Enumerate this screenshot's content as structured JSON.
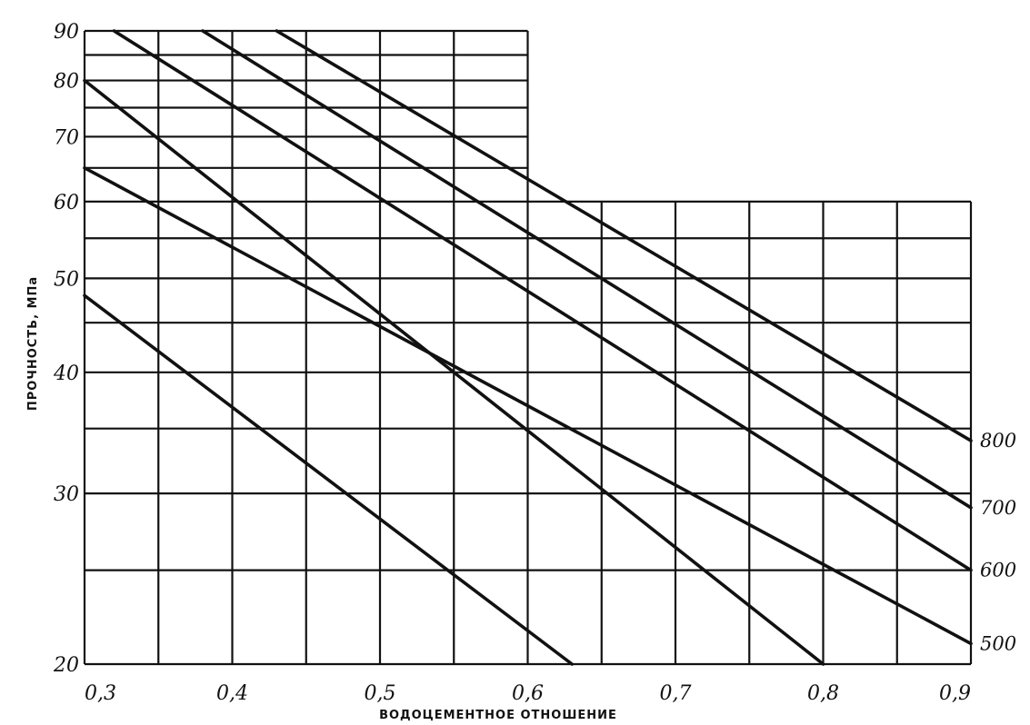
{
  "chart_data": {
    "type": "line",
    "title": "",
    "xlabel": "ВОДОЦЕМЕНТНОЕ ОТНОШЕНИЕ",
    "ylabel": "ПРОЧНОСТЬ, МПа",
    "x_scale": "linear",
    "y_scale": "log",
    "xlim": [
      0.3,
      0.9
    ],
    "ylim": [
      20,
      90
    ],
    "grid": true,
    "x_ticks": [
      0.3,
      0.4,
      0.5,
      0.6,
      0.7,
      0.8,
      0.9
    ],
    "x_tick_labels": [
      "0,3",
      "0,4",
      "0,5",
      "0,6",
      "0,7",
      "0,8",
      "0,9"
    ],
    "x_minor_gridlines": [
      0.35,
      0.45,
      0.55,
      0.65,
      0.75,
      0.85
    ],
    "y_ticks": [
      20,
      30,
      40,
      50,
      60,
      70,
      80,
      90
    ],
    "y_tick_labels": [
      "20",
      "30",
      "40",
      "50",
      "60",
      "70",
      "80",
      "90"
    ],
    "y_minor_gridlines": [
      25,
      35,
      45,
      55,
      65,
      75,
      85
    ],
    "grid_region": {
      "upper_step_at_y": 60,
      "upper_x_range": [
        0.3,
        0.6
      ]
    },
    "series": [
      {
        "name": "800",
        "points": [
          [
            0.43,
            90
          ],
          [
            0.9,
            34
          ]
        ]
      },
      {
        "name": "700",
        "points": [
          [
            0.38,
            90
          ],
          [
            0.9,
            29
          ]
        ]
      },
      {
        "name": "600",
        "points": [
          [
            0.32,
            90
          ],
          [
            0.9,
            25
          ]
        ]
      },
      {
        "name": "500",
        "points": [
          [
            0.3,
            65
          ],
          [
            0.9,
            21
          ]
        ]
      },
      {
        "name": "",
        "points": [
          [
            0.3,
            80
          ],
          [
            0.8,
            20
          ]
        ]
      },
      {
        "name": "",
        "points": [
          [
            0.3,
            48
          ],
          [
            0.63,
            20
          ]
        ]
      }
    ]
  }
}
